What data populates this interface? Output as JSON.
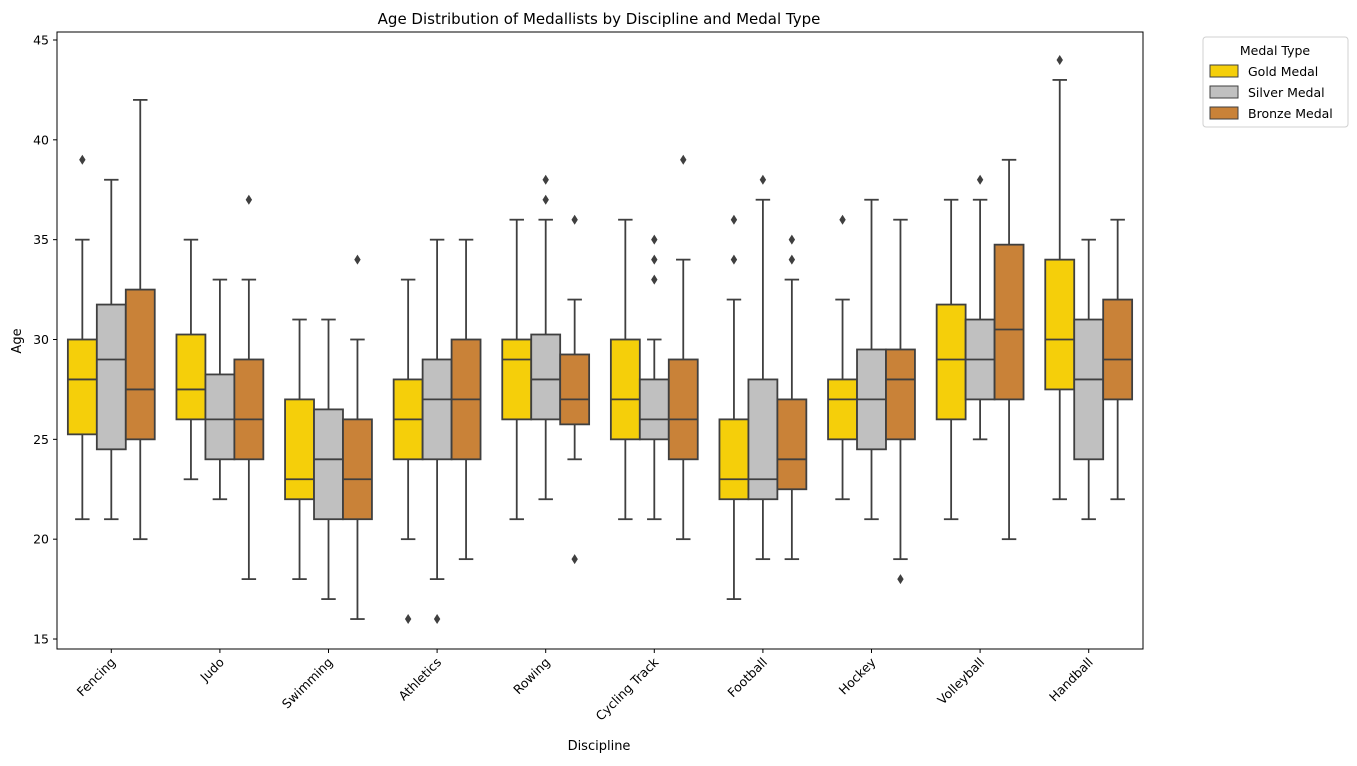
{
  "chart_data": {
    "type": "box",
    "title": "Age Distribution of Medallists by Discipline and Medal Type",
    "xlabel": "Discipline",
    "ylabel": "Age",
    "ylim": [
      14.5,
      45.4
    ],
    "yticks": [
      15,
      20,
      25,
      30,
      35,
      40,
      45
    ],
    "grid": false,
    "legend": {
      "title": "Medal Type",
      "placement": "outside-top-right"
    },
    "categories": [
      "Fencing",
      "Judo",
      "Swimming",
      "Athletics",
      "Rowing",
      "Cycling Track",
      "Football",
      "Hockey",
      "Volleyball",
      "Handball"
    ],
    "series": [
      {
        "name": "Gold Medal",
        "color": "#f5cf0a",
        "boxes": [
          {
            "whislo": 21,
            "q1": 25.25,
            "med": 28,
            "q3": 30,
            "whishi": 35,
            "fliers": [
              39
            ]
          },
          {
            "whislo": 23,
            "q1": 26,
            "med": 27.5,
            "q3": 30.25,
            "whishi": 35,
            "fliers": []
          },
          {
            "whislo": 18,
            "q1": 22,
            "med": 23,
            "q3": 27,
            "whishi": 31,
            "fliers": []
          },
          {
            "whislo": 20,
            "q1": 24,
            "med": 26,
            "q3": 28,
            "whishi": 33,
            "fliers": [
              16
            ]
          },
          {
            "whislo": 21,
            "q1": 26,
            "med": 29,
            "q3": 30,
            "whishi": 36,
            "fliers": []
          },
          {
            "whislo": 21,
            "q1": 25,
            "med": 27,
            "q3": 30,
            "whishi": 36,
            "fliers": []
          },
          {
            "whislo": 17,
            "q1": 22,
            "med": 23,
            "q3": 26,
            "whishi": 32,
            "fliers": [
              34,
              36
            ]
          },
          {
            "whislo": 22,
            "q1": 25,
            "med": 27,
            "q3": 28,
            "whishi": 32,
            "fliers": [
              36
            ]
          },
          {
            "whislo": 21,
            "q1": 26,
            "med": 29,
            "q3": 31.75,
            "whishi": 37,
            "fliers": []
          },
          {
            "whislo": 22,
            "q1": 27.5,
            "med": 30,
            "q3": 34,
            "whishi": 43,
            "fliers": [
              44
            ]
          }
        ]
      },
      {
        "name": "Silver Medal",
        "color": "#c0c0c0",
        "boxes": [
          {
            "whislo": 21,
            "q1": 24.5,
            "med": 29,
            "q3": 31.75,
            "whishi": 38,
            "fliers": []
          },
          {
            "whislo": 22,
            "q1": 24,
            "med": 26,
            "q3": 28.25,
            "whishi": 33,
            "fliers": []
          },
          {
            "whislo": 17,
            "q1": 21,
            "med": 24,
            "q3": 26.5,
            "whishi": 31,
            "fliers": []
          },
          {
            "whislo": 18,
            "q1": 24,
            "med": 27,
            "q3": 29,
            "whishi": 35,
            "fliers": [
              16
            ]
          },
          {
            "whislo": 22,
            "q1": 26,
            "med": 28,
            "q3": 30.25,
            "whishi": 36,
            "fliers": [
              37,
              38
            ]
          },
          {
            "whislo": 21,
            "q1": 25,
            "med": 26,
            "q3": 28,
            "whishi": 30,
            "fliers": [
              33,
              34,
              35
            ]
          },
          {
            "whislo": 19,
            "q1": 22,
            "med": 23,
            "q3": 28,
            "whishi": 37,
            "fliers": [
              38
            ]
          },
          {
            "whislo": 21,
            "q1": 24.5,
            "med": 27,
            "q3": 29.5,
            "whishi": 37,
            "fliers": []
          },
          {
            "whislo": 25,
            "q1": 27,
            "med": 29,
            "q3": 31,
            "whishi": 37,
            "fliers": [
              38
            ]
          },
          {
            "whislo": 21,
            "q1": 24,
            "med": 28,
            "q3": 31,
            "whishi": 35,
            "fliers": []
          }
        ]
      },
      {
        "name": "Bronze Medal",
        "color": "#c98238",
        "boxes": [
          {
            "whislo": 20,
            "q1": 25,
            "med": 27.5,
            "q3": 32.5,
            "whishi": 42,
            "fliers": []
          },
          {
            "whislo": 18,
            "q1": 24,
            "med": 26,
            "q3": 29,
            "whishi": 33,
            "fliers": [
              37
            ]
          },
          {
            "whislo": 16,
            "q1": 21,
            "med": 23,
            "q3": 26,
            "whishi": 30,
            "fliers": [
              34
            ]
          },
          {
            "whislo": 19,
            "q1": 24,
            "med": 27,
            "q3": 30,
            "whishi": 35,
            "fliers": []
          },
          {
            "whislo": 24,
            "q1": 25.75,
            "med": 27,
            "q3": 29.25,
            "whishi": 32,
            "fliers": [
              19,
              36
            ]
          },
          {
            "whislo": 20,
            "q1": 24,
            "med": 26,
            "q3": 29,
            "whishi": 34,
            "fliers": [
              39
            ]
          },
          {
            "whislo": 19,
            "q1": 22.5,
            "med": 24,
            "q3": 27,
            "whishi": 33,
            "fliers": [
              34,
              35
            ]
          },
          {
            "whislo": 19,
            "q1": 25,
            "med": 28,
            "q3": 29.5,
            "whishi": 36,
            "fliers": [
              18
            ]
          },
          {
            "whislo": 20,
            "q1": 27,
            "med": 30.5,
            "q3": 34.75,
            "whishi": 39,
            "fliers": []
          },
          {
            "whislo": 22,
            "q1": 27,
            "med": 29,
            "q3": 32,
            "whishi": 36,
            "fliers": []
          }
        ]
      }
    ]
  }
}
